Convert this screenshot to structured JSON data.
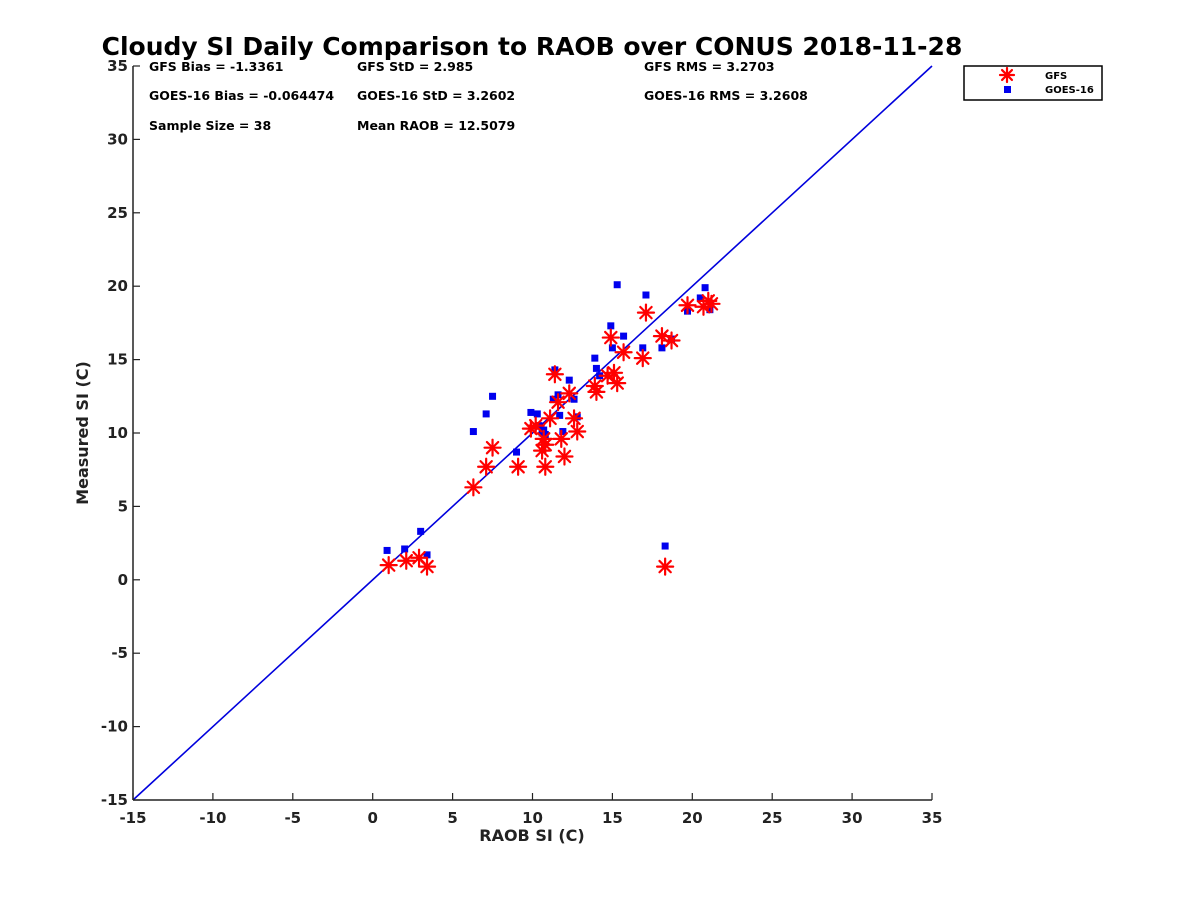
{
  "chart_data": {
    "type": "scatter",
    "title": "Cloudy SI Daily Comparison to RAOB over CONUS 2018-11-28",
    "xlabel": "RAOB SI (C)",
    "ylabel": "Measured SI (C)",
    "xlim": [
      -15,
      35
    ],
    "ylim": [
      -15,
      35
    ],
    "xticks": [
      "-15",
      "-10",
      "-5",
      "0",
      "5",
      "10",
      "15",
      "20",
      "25",
      "30",
      "35"
    ],
    "yticks": [
      "-15",
      "-10",
      "-5",
      "0",
      "5",
      "10",
      "15",
      "20",
      "25",
      "30",
      "35"
    ],
    "legend_position": "outside-top-right",
    "reference_line": {
      "name": "1:1 line",
      "color": "#0000dd"
    },
    "stats": [
      {
        "label": "GFS Bias = -1.3361"
      },
      {
        "label": "GFS StD = 2.985"
      },
      {
        "label": "GFS RMS = 3.2703"
      },
      {
        "label": "GOES-16 Bias = -0.064474"
      },
      {
        "label": "GOES-16 StD = 3.2602"
      },
      {
        "label": "GOES-16 RMS = 3.2608"
      },
      {
        "label": "Sample Size = 38"
      },
      {
        "label": "Mean RAOB = 12.5079"
      }
    ],
    "series": [
      {
        "name": "GFS",
        "marker": "asterisk",
        "color": "#ff0000",
        "x": [
          1.0,
          2.1,
          2.9,
          3.4,
          6.3,
          7.1,
          7.5,
          9.1,
          9.9,
          10.2,
          10.6,
          10.7,
          10.8,
          10.8,
          11.1,
          11.4,
          11.6,
          11.8,
          12.0,
          12.3,
          12.6,
          12.8,
          13.9,
          14.0,
          14.7,
          14.9,
          15.1,
          15.3,
          15.7,
          16.9,
          17.1,
          18.1,
          18.3,
          18.7,
          19.7,
          20.7,
          21.0,
          21.2
        ],
        "y": [
          1.0,
          1.3,
          1.5,
          0.9,
          6.3,
          7.7,
          9.0,
          7.7,
          10.3,
          10.5,
          8.8,
          9.6,
          9.2,
          7.7,
          11.0,
          14.0,
          12.1,
          9.6,
          8.4,
          12.7,
          11.0,
          10.1,
          13.2,
          12.8,
          13.9,
          16.5,
          14.1,
          13.4,
          15.5,
          15.1,
          18.2,
          16.6,
          0.9,
          16.3,
          18.7,
          18.6,
          19.0,
          18.8
        ]
      },
      {
        "name": "GOES-16",
        "marker": "square",
        "color": "#0000ee",
        "x": [
          0.9,
          2.0,
          3.0,
          3.4,
          6.3,
          7.1,
          7.5,
          9.0,
          9.9,
          10.3,
          10.4,
          10.6,
          10.7,
          10.8,
          11.3,
          11.4,
          11.6,
          11.7,
          11.9,
          12.3,
          12.6,
          12.8,
          13.9,
          14.0,
          14.2,
          14.9,
          15.0,
          15.3,
          15.7,
          16.9,
          17.1,
          18.1,
          18.3,
          18.7,
          19.7,
          20.5,
          20.8,
          21.1
        ],
        "y": [
          2.0,
          2.1,
          3.3,
          1.7,
          10.1,
          11.3,
          12.5,
          8.7,
          11.4,
          11.3,
          10.5,
          10.0,
          10.2,
          9.9,
          12.3,
          14.3,
          12.6,
          11.2,
          10.1,
          13.6,
          12.3,
          11.1,
          15.1,
          14.4,
          13.9,
          17.3,
          15.8,
          20.1,
          16.6,
          15.8,
          19.4,
          15.8,
          2.3,
          16.4,
          18.3,
          19.2,
          19.9,
          18.4
        ]
      }
    ]
  }
}
